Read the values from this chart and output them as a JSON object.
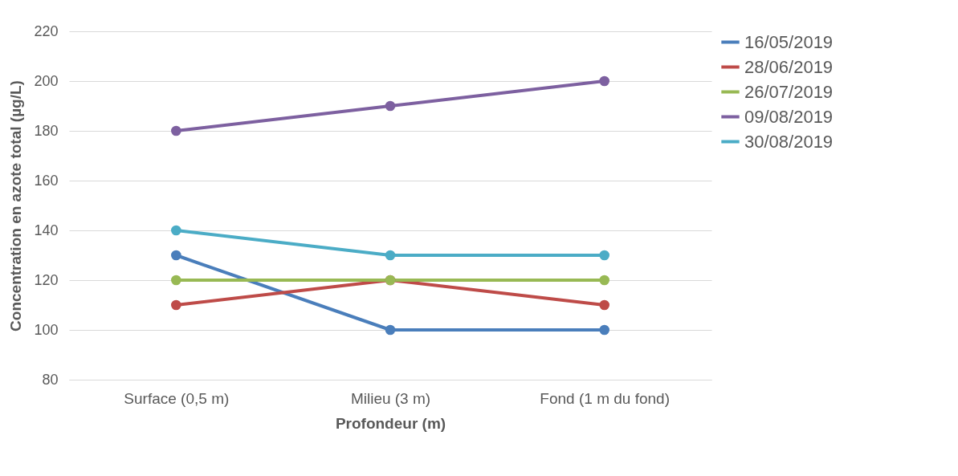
{
  "chart_data": {
    "type": "line",
    "xlabel": "Profondeur (m)",
    "ylabel": "Concentration en azote total (µg/L)",
    "categories": [
      "Surface (0,5 m)",
      "Milieu (3 m)",
      "Fond (1 m du fond)"
    ],
    "series": [
      {
        "name": "16/05/2019",
        "color": "#4a7ebb",
        "values": [
          130,
          100,
          100
        ]
      },
      {
        "name": "28/06/2019",
        "color": "#be4b48",
        "values": [
          110,
          120,
          110
        ]
      },
      {
        "name": "26/07/2019",
        "color": "#98b954",
        "values": [
          120,
          120,
          120
        ]
      },
      {
        "name": "09/08/2019",
        "color": "#7d60a0",
        "values": [
          180,
          190,
          200
        ]
      },
      {
        "name": "30/08/2019",
        "color": "#4bacc6",
        "values": [
          140,
          130,
          130
        ]
      }
    ],
    "ylim": [
      80,
      220
    ],
    "yticks": [
      80,
      100,
      120,
      140,
      160,
      180,
      200,
      220
    ],
    "grid": "y",
    "legend": "right",
    "marker": "circle",
    "line_style": "solid"
  }
}
